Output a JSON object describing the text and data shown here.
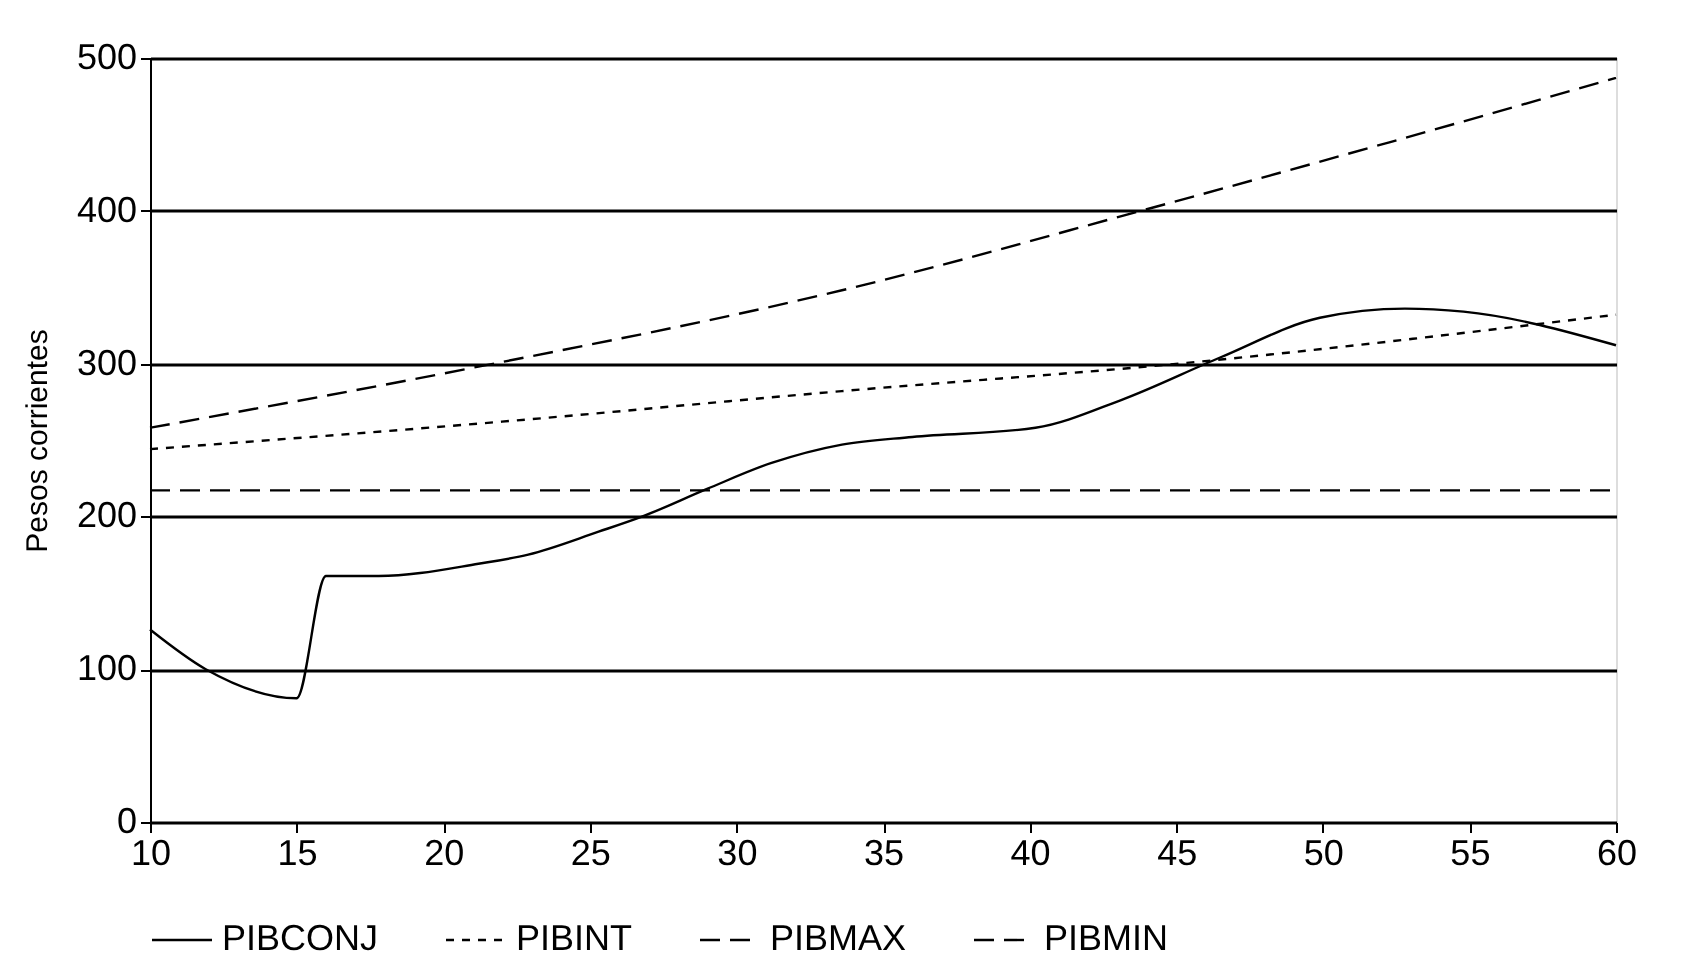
{
  "chart_data": {
    "type": "line",
    "ylabel": "Pesos corrientes",
    "xlim": [
      10,
      60
    ],
    "xticks": [
      10,
      15,
      20,
      25,
      30,
      35,
      40,
      45,
      50,
      55,
      60
    ],
    "ylim": [
      0,
      500
    ],
    "yticks": [
      0,
      100,
      200,
      300,
      400,
      500
    ],
    "grid": "y",
    "legend": "bottom",
    "series": [
      {
        "name": "PIBCONJ",
        "color": "#000000",
        "line_style": "solid",
        "x": [
          10,
          11.9,
          15,
          16,
          17.8,
          21.2,
          22.9,
          25.3,
          26.8,
          29,
          31.2,
          33.6,
          36,
          40.2,
          43.1,
          46.5,
          49.9,
          52.8,
          54.8,
          60
        ],
        "values": [
          126,
          100,
          81,
          161,
          161,
          169,
          175,
          190,
          200,
          218,
          235,
          247,
          252,
          258,
          276,
          304,
          330,
          336,
          334,
          312
        ]
      },
      {
        "name": "PIBINT",
        "color": "#000000",
        "line_style": "dotted",
        "x": [
          10,
          22,
          33.6,
          45.1,
          60
        ],
        "values": [
          244,
          262,
          282,
          300,
          332
        ]
      },
      {
        "name": "PIBMAX",
        "color": "#000000",
        "line_style": "dashed",
        "x": [
          10,
          21.2,
          33.6,
          43.8,
          52.3,
          60
        ],
        "values": [
          258,
          298,
          348,
          400,
          445,
          487
        ]
      },
      {
        "name": "PIBMIN",
        "color": "#000000",
        "line_style": "dashed",
        "x": [
          10,
          60
        ],
        "values": [
          217,
          217
        ]
      }
    ]
  }
}
